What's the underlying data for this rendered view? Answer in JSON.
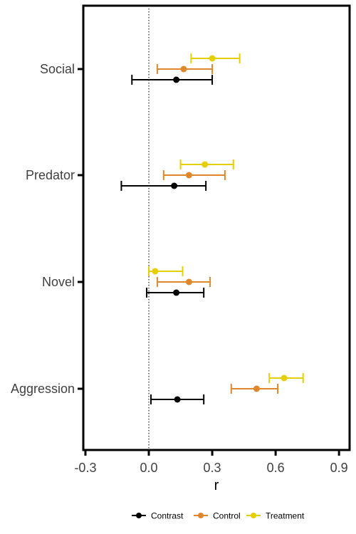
{
  "chart_data": {
    "type": "forest",
    "xlabel": "r",
    "ylabel": "",
    "xlim": [
      -0.31,
      0.95
    ],
    "xticks": [
      -0.3,
      0.0,
      0.3,
      0.6,
      0.9
    ],
    "xtick_labels": [
      "-0.3",
      "0.0",
      "0.3",
      "0.6",
      "0.9"
    ],
    "reference_line": 0,
    "grid": false,
    "legend_position": "bottom",
    "categories": [
      "Social",
      "Predator",
      "Novel",
      "Aggression"
    ],
    "series": [
      {
        "name": "Contrast",
        "color": "#000000",
        "estimates": [
          0.13,
          0.12,
          0.13,
          0.135
        ],
        "lower": [
          -0.08,
          -0.13,
          -0.01,
          0.01
        ],
        "upper": [
          0.3,
          0.27,
          0.26,
          0.26
        ]
      },
      {
        "name": "Control",
        "color": "#e0862b",
        "estimates": [
          0.165,
          0.19,
          0.19,
          0.51
        ],
        "lower": [
          0.04,
          0.07,
          0.04,
          0.39
        ],
        "upper": [
          0.3,
          0.36,
          0.29,
          0.61
        ]
      },
      {
        "name": "Treatment",
        "color": "#e6cf00",
        "estimates": [
          0.3,
          0.265,
          0.03,
          0.64
        ],
        "lower": [
          0.2,
          0.15,
          0.0,
          0.57
        ],
        "upper": [
          0.43,
          0.4,
          0.16,
          0.73
        ]
      }
    ]
  }
}
